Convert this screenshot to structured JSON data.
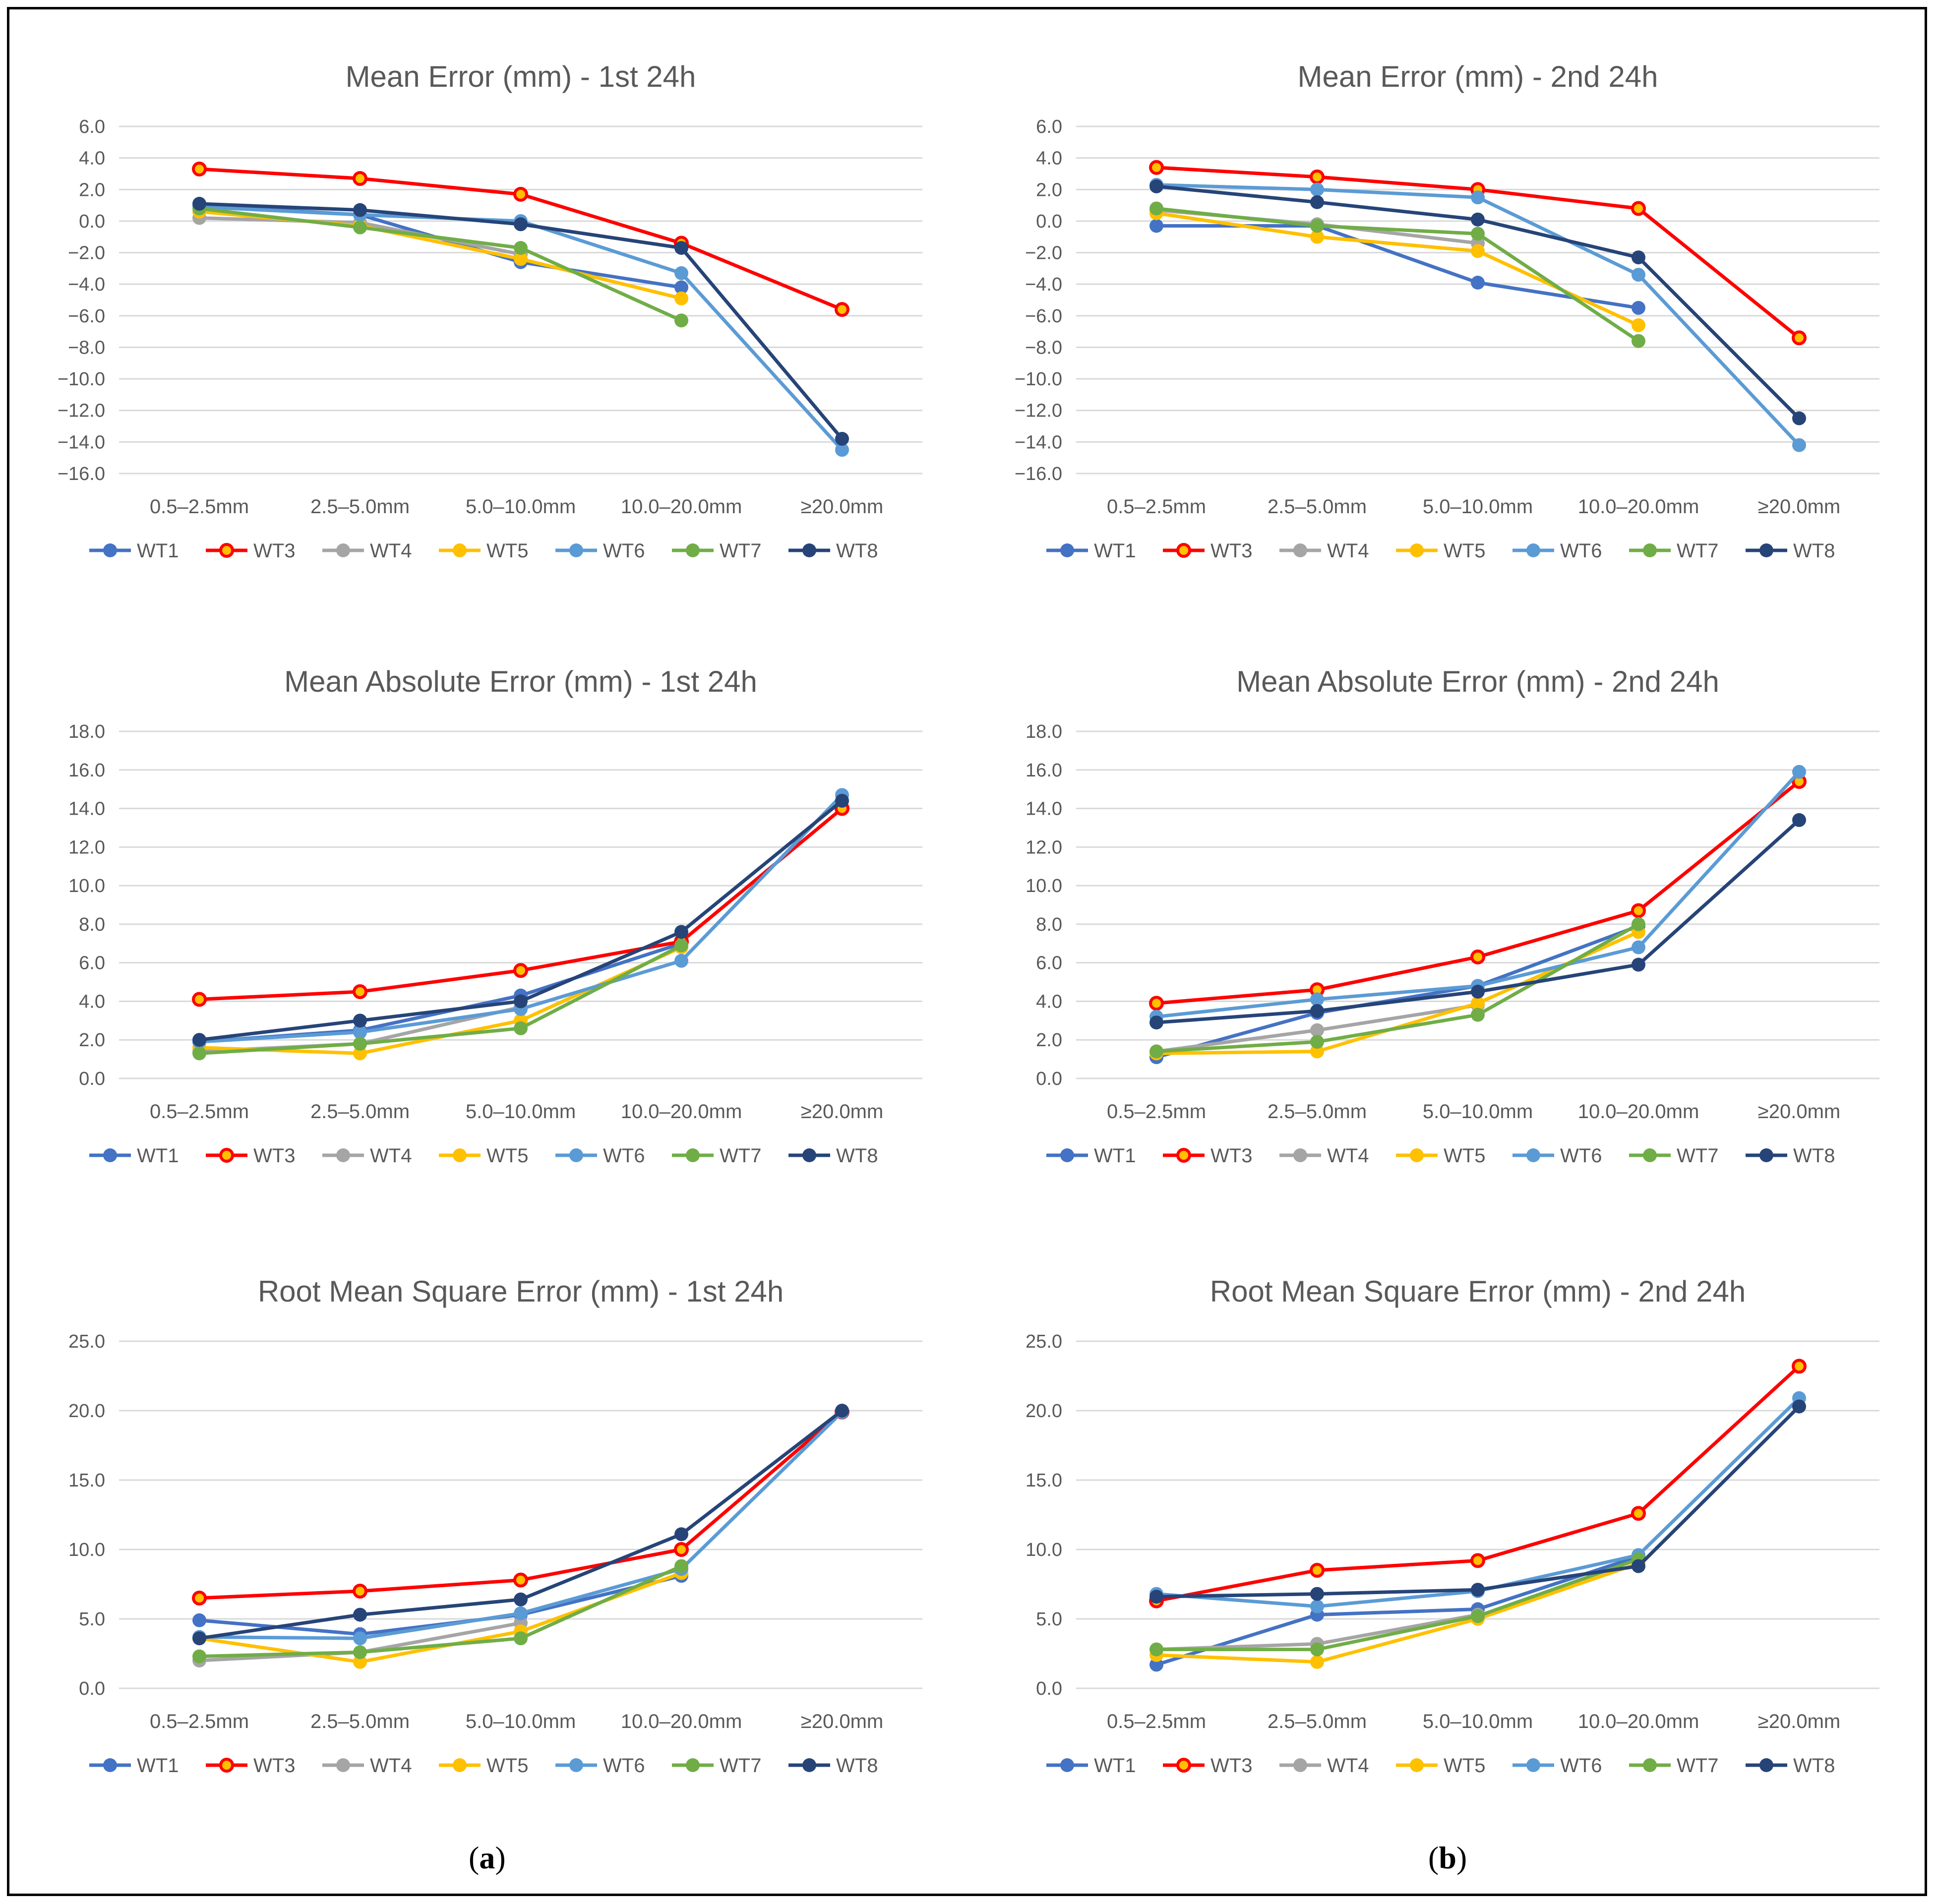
{
  "panel_labels": [
    "a",
    "b"
  ],
  "colors": {
    "WT1": "#4472C4",
    "WT3": "#FF0000",
    "WT4": "#A5A5A5",
    "WT5": "#FFC000",
    "WT6": "#5B9BD5",
    "WT7": "#70AD47",
    "WT8": "#264478"
  },
  "chart_data": [
    {
      "type": "line",
      "title": "Mean Error (mm) - 1st 24h",
      "categories": [
        "0.5–2.5mm",
        "2.5–5.0mm",
        "5.0–10.0mm",
        "10.0–20.0mm",
        "≥20.0mm"
      ],
      "ylim": [
        -16,
        6
      ],
      "ystep": 2,
      "yticks": [
        "6.0",
        "4.0",
        "2.0",
        "0.0",
        "−2.0",
        "−4.0",
        "−6.0",
        "−8.0",
        "−10.0",
        "−12.0",
        "−14.0",
        "−16.0"
      ],
      "grid": true,
      "legend": "bottom",
      "series": [
        {
          "name": "WT1",
          "values": [
            1.0,
            0.4,
            -2.6,
            -4.2,
            null
          ]
        },
        {
          "name": "WT3",
          "values": [
            3.3,
            2.7,
            1.7,
            -1.4,
            -5.6
          ]
        },
        {
          "name": "WT4",
          "values": [
            0.2,
            -0.1,
            -2.1,
            null,
            null
          ]
        },
        {
          "name": "WT5",
          "values": [
            0.6,
            -0.3,
            -2.4,
            -4.9,
            null
          ]
        },
        {
          "name": "WT6",
          "values": [
            0.9,
            0.4,
            0.0,
            -3.3,
            -14.5
          ]
        },
        {
          "name": "WT7",
          "values": [
            0.8,
            -0.4,
            -1.7,
            -6.3,
            null
          ]
        },
        {
          "name": "WT8",
          "values": [
            1.1,
            0.7,
            -0.2,
            -1.7,
            -13.8
          ]
        }
      ]
    },
    {
      "type": "line",
      "title": "Mean Error (mm) - 2nd 24h",
      "categories": [
        "0.5–2.5mm",
        "2.5–5.0mm",
        "5.0–10.0mm",
        "10.0–20.0mm",
        "≥20.0mm"
      ],
      "ylim": [
        -16,
        6
      ],
      "ystep": 2,
      "yticks": [
        "6.0",
        "4.0",
        "2.0",
        "0.0",
        "−2.0",
        "−4.0",
        "−6.0",
        "−8.0",
        "−10.0",
        "−12.0",
        "−14.0",
        "−16.0"
      ],
      "grid": true,
      "legend": "bottom",
      "series": [
        {
          "name": "WT1",
          "values": [
            -0.3,
            -0.3,
            -3.9,
            -5.5,
            null
          ]
        },
        {
          "name": "WT3",
          "values": [
            3.4,
            2.8,
            2.0,
            0.8,
            -7.4
          ]
        },
        {
          "name": "WT4",
          "values": [
            0.7,
            -0.2,
            -1.4,
            null,
            null
          ]
        },
        {
          "name": "WT5",
          "values": [
            0.5,
            -1.0,
            -1.9,
            -6.6,
            null
          ]
        },
        {
          "name": "WT6",
          "values": [
            2.3,
            2.0,
            1.5,
            -3.4,
            -14.2
          ]
        },
        {
          "name": "WT7",
          "values": [
            0.8,
            -0.3,
            -0.8,
            -7.6,
            null
          ]
        },
        {
          "name": "WT8",
          "values": [
            2.2,
            1.2,
            0.1,
            -2.3,
            -12.5
          ]
        }
      ]
    },
    {
      "type": "line",
      "title": "Mean Absolute Error (mm) - 1st 24h",
      "categories": [
        "0.5–2.5mm",
        "2.5–5.0mm",
        "5.0–10.0mm",
        "10.0–20.0mm",
        "≥20.0mm"
      ],
      "ylim": [
        0,
        18
      ],
      "ystep": 2,
      "yticks": [
        "18.0",
        "16.0",
        "14.0",
        "12.0",
        "10.0",
        "8.0",
        "6.0",
        "4.0",
        "2.0",
        "0.0"
      ],
      "grid": true,
      "legend": "bottom",
      "series": [
        {
          "name": "WT1",
          "values": [
            1.9,
            2.5,
            4.3,
            7.0,
            null
          ]
        },
        {
          "name": "WT3",
          "values": [
            4.1,
            4.5,
            5.6,
            7.1,
            14.0
          ]
        },
        {
          "name": "WT4",
          "values": [
            1.4,
            1.8,
            3.7,
            null,
            null
          ]
        },
        {
          "name": "WT5",
          "values": [
            1.6,
            1.3,
            3.0,
            6.8,
            null
          ]
        },
        {
          "name": "WT6",
          "values": [
            1.9,
            2.4,
            3.6,
            6.1,
            14.7
          ]
        },
        {
          "name": "WT7",
          "values": [
            1.3,
            1.8,
            2.6,
            6.9,
            null
          ]
        },
        {
          "name": "WT8",
          "values": [
            2.0,
            3.0,
            4.0,
            7.6,
            14.4
          ]
        }
      ]
    },
    {
      "type": "line",
      "title": "Mean Absolute Error (mm) - 2nd 24h",
      "categories": [
        "0.5–2.5mm",
        "2.5–5.0mm",
        "5.0–10.0mm",
        "10.0–20.0mm",
        "≥20.0mm"
      ],
      "ylim": [
        0,
        18
      ],
      "ystep": 2,
      "yticks": [
        "18.0",
        "16.0",
        "14.0",
        "12.0",
        "10.0",
        "8.0",
        "6.0",
        "4.0",
        "2.0",
        "0.0"
      ],
      "grid": true,
      "legend": "bottom",
      "series": [
        {
          "name": "WT1",
          "values": [
            1.1,
            3.4,
            4.8,
            7.9,
            null
          ]
        },
        {
          "name": "WT3",
          "values": [
            3.9,
            4.6,
            6.3,
            8.7,
            15.4
          ]
        },
        {
          "name": "WT4",
          "values": [
            1.4,
            2.5,
            3.8,
            null,
            null
          ]
        },
        {
          "name": "WT5",
          "values": [
            1.3,
            1.4,
            3.9,
            7.6,
            null
          ]
        },
        {
          "name": "WT6",
          "values": [
            3.2,
            4.1,
            4.8,
            6.8,
            15.9
          ]
        },
        {
          "name": "WT7",
          "values": [
            1.4,
            1.9,
            3.3,
            8.0,
            null
          ]
        },
        {
          "name": "WT8",
          "values": [
            2.9,
            3.5,
            4.5,
            5.9,
            13.4
          ]
        }
      ]
    },
    {
      "type": "line",
      "title": "Root Mean Square Error (mm) - 1st 24h",
      "categories": [
        "0.5–2.5mm",
        "2.5–5.0mm",
        "5.0–10.0mm",
        "10.0–20.0mm",
        "≥20.0mm"
      ],
      "ylim": [
        0,
        25
      ],
      "ystep": 5,
      "yticks": [
        "25.0",
        "20.0",
        "15.0",
        "10.0",
        "5.0",
        "0.0"
      ],
      "grid": true,
      "legend": "bottom",
      "series": [
        {
          "name": "WT1",
          "values": [
            4.9,
            3.9,
            5.3,
            8.1,
            null
          ]
        },
        {
          "name": "WT3",
          "values": [
            6.5,
            7.0,
            7.8,
            10.0,
            19.9
          ]
        },
        {
          "name": "WT4",
          "values": [
            2.0,
            2.6,
            4.7,
            null,
            null
          ]
        },
        {
          "name": "WT5",
          "values": [
            3.6,
            1.9,
            4.1,
            8.3,
            null
          ]
        },
        {
          "name": "WT6",
          "values": [
            3.7,
            3.6,
            5.4,
            8.6,
            19.9
          ]
        },
        {
          "name": "WT7",
          "values": [
            2.3,
            2.6,
            3.6,
            8.8,
            null
          ]
        },
        {
          "name": "WT8",
          "values": [
            3.6,
            5.3,
            6.4,
            11.1,
            20.0
          ]
        }
      ]
    },
    {
      "type": "line",
      "title": "Root Mean Square Error (mm) - 2nd 24h",
      "categories": [
        "0.5–2.5mm",
        "2.5–5.0mm",
        "5.0–10.0mm",
        "10.0–20.0mm",
        "≥20.0mm"
      ],
      "ylim": [
        0,
        25
      ],
      "ystep": 5,
      "yticks": [
        "25.0",
        "20.0",
        "15.0",
        "10.0",
        "5.0",
        "0.0"
      ],
      "grid": true,
      "legend": "bottom",
      "series": [
        {
          "name": "WT1",
          "values": [
            1.7,
            5.3,
            5.7,
            9.5,
            null
          ]
        },
        {
          "name": "WT3",
          "values": [
            6.3,
            8.5,
            9.2,
            12.6,
            23.2
          ]
        },
        {
          "name": "WT4",
          "values": [
            2.8,
            3.2,
            5.3,
            null,
            null
          ]
        },
        {
          "name": "WT5",
          "values": [
            2.4,
            1.9,
            5.0,
            9.0,
            null
          ]
        },
        {
          "name": "WT6",
          "values": [
            6.8,
            5.9,
            7.0,
            9.6,
            20.9
          ]
        },
        {
          "name": "WT7",
          "values": [
            2.8,
            2.8,
            5.2,
            9.3,
            null
          ]
        },
        {
          "name": "WT8",
          "values": [
            6.6,
            6.8,
            7.1,
            8.8,
            20.3
          ]
        }
      ]
    }
  ]
}
